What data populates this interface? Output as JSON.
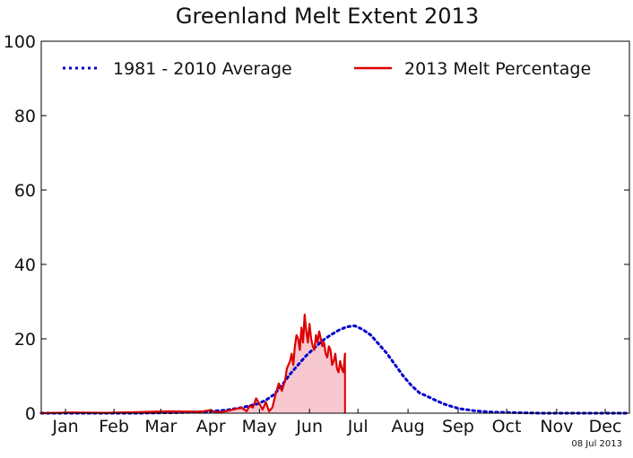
{
  "chart_data": {
    "type": "line",
    "title": "Greenland Melt Extent 2013",
    "xlabel": "",
    "ylabel": "",
    "ylim": [
      0,
      100
    ],
    "y_ticks": [
      0,
      20,
      40,
      60,
      80,
      100
    ],
    "x_range_days": [
      1,
      365
    ],
    "months": [
      "Jan",
      "Feb",
      "Mar",
      "Apr",
      "May",
      "Jun",
      "Jul",
      "Aug",
      "Sep",
      "Oct",
      "Nov",
      "Dec"
    ],
    "month_label_days": [
      16,
      46,
      75,
      106,
      136,
      167,
      197,
      228,
      259,
      289,
      320,
      350
    ],
    "legend": {
      "placement": "top",
      "frame": false
    },
    "grid": false,
    "date_stamp": "08 Jul 2013",
    "series": [
      {
        "name": "1981 - 2010 Average",
        "style": "dotted",
        "color": "#0000cc",
        "x": [
          1,
          60,
          90,
          105,
          115,
          125,
          135,
          140,
          145,
          150,
          155,
          160,
          165,
          170,
          175,
          180,
          185,
          190,
          195,
          200,
          205,
          210,
          215,
          220,
          225,
          230,
          235,
          240,
          245,
          250,
          255,
          260,
          270,
          280,
          290,
          300,
          310,
          320,
          340,
          365
        ],
        "values": [
          0,
          0,
          0.2,
          0.5,
          0.8,
          1.5,
          2.5,
          3.5,
          5,
          7.5,
          10.5,
          13,
          15.5,
          17.5,
          19.5,
          21,
          22.3,
          23.2,
          23.5,
          22.5,
          21,
          18.5,
          16,
          13,
          10,
          7.5,
          5.5,
          4.5,
          3.5,
          2.5,
          1.8,
          1.2,
          0.6,
          0.3,
          0.2,
          0.1,
          0,
          0,
          0,
          0
        ]
      },
      {
        "name": "2013 Melt Percentage",
        "style": "solid",
        "color": "#dd0000",
        "fill": "#f8c8d0",
        "x": [
          1,
          20,
          40,
          60,
          80,
          100,
          105,
          110,
          115,
          120,
          125,
          128,
          130,
          132,
          134,
          136,
          138,
          140,
          142,
          144,
          146,
          148,
          150,
          152,
          153,
          155,
          156,
          157,
          158,
          159,
          160,
          161,
          162,
          163,
          164,
          165,
          166,
          167,
          168,
          169,
          170,
          171,
          172,
          173,
          174,
          175,
          176,
          177,
          178,
          179,
          180,
          181,
          182,
          183,
          184,
          185,
          186,
          187,
          188,
          189
        ],
        "values": [
          0,
          0.2,
          0.1,
          0.3,
          0.5,
          0.4,
          0.8,
          0.2,
          0.5,
          1.0,
          1.5,
          0.5,
          2,
          1.5,
          4,
          2.5,
          1,
          3,
          0.5,
          1.5,
          5,
          8,
          6,
          9,
          12,
          14,
          16,
          13,
          18,
          21,
          20,
          17,
          23,
          19,
          26.5,
          22,
          19,
          24,
          20,
          18,
          17,
          21,
          19,
          22,
          20,
          18,
          19,
          16,
          15,
          18,
          17,
          13,
          14,
          16,
          12,
          11,
          14,
          12,
          11,
          16
        ]
      }
    ]
  }
}
